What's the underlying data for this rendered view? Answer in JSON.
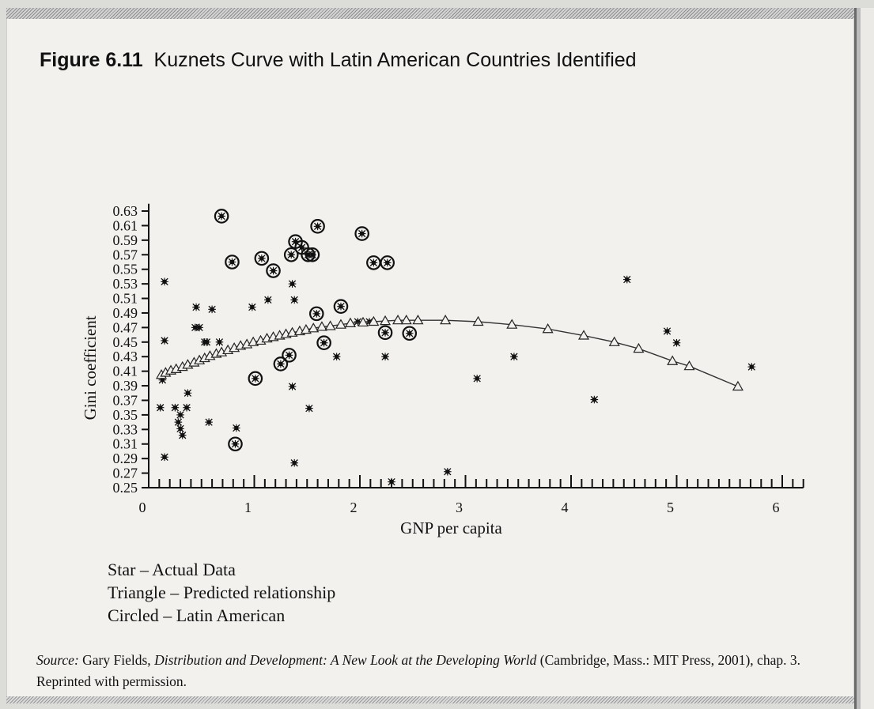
{
  "figure": {
    "label": "Figure 6.11",
    "title": "Kuznets Curve with Latin American Countries Identified"
  },
  "legend": {
    "star": "Star – Actual Data",
    "triangle": "Triangle – Predicted relationship",
    "circled": "Circled – Latin American"
  },
  "source": {
    "prefix": "Source:",
    "author": " Gary Fields, ",
    "title": "Distribution and Development: A New Look at the Developing World",
    "rest": " (Cambridge, Mass.: MIT Press, 2001), chap. 3. Reprinted with permission."
  },
  "chart_data": {
    "type": "scatter",
    "title": "",
    "xlabel": "GNP per capita",
    "ylabel": "Gini coefficient",
    "xlim": [
      0,
      6.2
    ],
    "ylim": [
      0.25,
      0.64
    ],
    "x_ticks": [
      0,
      1,
      2,
      3,
      4,
      5,
      6
    ],
    "x_minor_step": 0.1,
    "y_ticks": [
      0.25,
      0.27,
      0.29,
      0.31,
      0.33,
      0.35,
      0.37,
      0.39,
      0.41,
      0.43,
      0.45,
      0.47,
      0.49,
      0.51,
      0.53,
      0.55,
      0.57,
      0.59,
      0.61,
      0.63
    ],
    "grid": false,
    "legend_position": "bottom-left",
    "colors": {
      "ink": "#111111",
      "paper": "#f2f1ee"
    },
    "series": [
      {
        "name": "Star – Actual Data",
        "marker": "star",
        "points": [
          [
            0.15,
            0.533
          ],
          [
            0.15,
            0.452
          ],
          [
            0.13,
            0.398
          ],
          [
            0.11,
            0.36
          ],
          [
            0.15,
            0.292
          ],
          [
            0.25,
            0.36
          ],
          [
            0.28,
            0.34
          ],
          [
            0.3,
            0.331
          ],
          [
            0.32,
            0.322
          ],
          [
            0.36,
            0.36
          ],
          [
            0.37,
            0.38
          ],
          [
            0.3,
            0.35
          ],
          [
            0.44,
            0.47
          ],
          [
            0.48,
            0.47
          ],
          [
            0.45,
            0.498
          ],
          [
            0.53,
            0.45
          ],
          [
            0.55,
            0.45
          ],
          [
            0.57,
            0.34
          ],
          [
            0.6,
            0.495
          ],
          [
            0.67,
            0.45
          ],
          [
            0.83,
            0.332
          ],
          [
            0.98,
            0.498
          ],
          [
            1.13,
            0.508
          ],
          [
            1.36,
            0.53
          ],
          [
            1.38,
            0.508
          ],
          [
            1.36,
            0.389
          ],
          [
            1.38,
            0.284
          ],
          [
            1.52,
            0.359
          ],
          [
            1.78,
            0.43
          ],
          [
            1.98,
            0.478
          ],
          [
            2.09,
            0.478
          ],
          [
            2.24,
            0.43
          ],
          [
            2.3,
            0.258
          ],
          [
            2.83,
            0.272
          ],
          [
            3.11,
            0.4
          ],
          [
            3.46,
            0.43
          ],
          [
            4.22,
            0.371
          ],
          [
            4.53,
            0.536
          ],
          [
            4.91,
            0.465
          ],
          [
            5.0,
            0.449
          ],
          [
            5.71,
            0.416
          ]
        ]
      },
      {
        "name": "Circled – Latin American",
        "marker": "circled-star",
        "points": [
          [
            0.69,
            0.623
          ],
          [
            0.79,
            0.56
          ],
          [
            1.01,
            0.4
          ],
          [
            1.07,
            0.565
          ],
          [
            1.18,
            0.548
          ],
          [
            1.25,
            0.42
          ],
          [
            1.33,
            0.432
          ],
          [
            1.39,
            0.588
          ],
          [
            1.35,
            0.57
          ],
          [
            1.45,
            0.58
          ],
          [
            1.51,
            0.57
          ],
          [
            1.55,
            0.57
          ],
          [
            1.59,
            0.489
          ],
          [
            1.6,
            0.609
          ],
          [
            1.66,
            0.449
          ],
          [
            1.82,
            0.499
          ],
          [
            2.02,
            0.599
          ],
          [
            2.13,
            0.559
          ],
          [
            2.26,
            0.559
          ],
          [
            2.24,
            0.463
          ],
          [
            2.47,
            0.462
          ],
          [
            0.82,
            0.31
          ]
        ]
      },
      {
        "name": "Triangle – Predicted relationship",
        "marker": "triangle",
        "line": true,
        "points": [
          [
            0.12,
            0.405
          ],
          [
            0.16,
            0.408
          ],
          [
            0.21,
            0.411
          ],
          [
            0.26,
            0.413
          ],
          [
            0.32,
            0.416
          ],
          [
            0.37,
            0.419
          ],
          [
            0.43,
            0.422
          ],
          [
            0.48,
            0.425
          ],
          [
            0.53,
            0.428
          ],
          [
            0.58,
            0.431
          ],
          [
            0.64,
            0.434
          ],
          [
            0.69,
            0.436
          ],
          [
            0.75,
            0.439
          ],
          [
            0.81,
            0.442
          ],
          [
            0.87,
            0.445
          ],
          [
            0.93,
            0.447
          ],
          [
            0.99,
            0.45
          ],
          [
            1.06,
            0.452
          ],
          [
            1.12,
            0.455
          ],
          [
            1.18,
            0.457
          ],
          [
            1.24,
            0.459
          ],
          [
            1.3,
            0.461
          ],
          [
            1.36,
            0.463
          ],
          [
            1.43,
            0.465
          ],
          [
            1.49,
            0.467
          ],
          [
            1.56,
            0.469
          ],
          [
            1.64,
            0.471
          ],
          [
            1.72,
            0.472
          ],
          [
            1.82,
            0.474
          ],
          [
            1.91,
            0.476
          ],
          [
            2.03,
            0.477
          ],
          [
            2.13,
            0.478
          ],
          [
            2.24,
            0.479
          ],
          [
            2.36,
            0.48
          ],
          [
            2.44,
            0.48
          ],
          [
            2.55,
            0.48
          ],
          [
            2.81,
            0.48
          ],
          [
            3.12,
            0.478
          ],
          [
            3.44,
            0.474
          ],
          [
            3.78,
            0.468
          ],
          [
            4.12,
            0.459
          ],
          [
            4.41,
            0.45
          ],
          [
            4.64,
            0.441
          ],
          [
            4.96,
            0.424
          ],
          [
            5.12,
            0.417
          ],
          [
            5.58,
            0.389
          ]
        ]
      }
    ]
  }
}
